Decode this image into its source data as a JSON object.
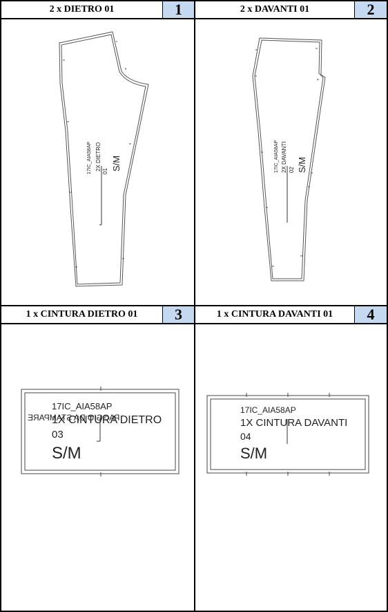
{
  "cells": [
    {
      "title": "2 x DIETRO 01",
      "number": "1",
      "labels": {
        "code": "17IC_AIA58AP",
        "name": "2X DIETRO",
        "piece": "01",
        "size": "S/M"
      }
    },
    {
      "title": "2 x DAVANTI 01",
      "number": "2",
      "labels": {
        "code": "17IC_AIA58AP",
        "name": "2X DAVANTI",
        "piece": "02",
        "size": "S/M"
      }
    },
    {
      "title": "1 x CINTURA DIETRO 01",
      "number": "3",
      "labels": {
        "code": "17IC_AIA58AP",
        "name": "1X CINTURA DIETRO",
        "piece": "03",
        "size": "S/M",
        "mirrored": "PAGGIO DA STAMPARE"
      }
    },
    {
      "title": "1 x CINTURA DAVANTI 01",
      "number": "4",
      "labels": {
        "code": "17IC_AIA58AP",
        "name": "1X CINTURA DAVANTI",
        "piece": "04",
        "size": "S/M"
      }
    }
  ]
}
